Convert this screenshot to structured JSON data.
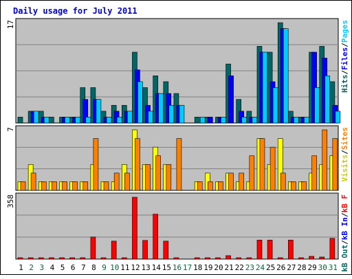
{
  "colors": {
    "hits": "#006666",
    "files": "#0000ff",
    "pages": "#00ccff",
    "visits": "#ffff00",
    "sites": "#ff8000",
    "kb_in": "#0000ff",
    "kb_out": "#006666",
    "kb_f": "#ff0000",
    "panel_bg": "#c0c0c0",
    "weekend_label": "#006633",
    "title": "#0000cc"
  },
  "chart_data": [
    {
      "type": "bar",
      "title": "Daily usage for July 2011",
      "ymax_label": "17",
      "categories": [
        "1",
        "2",
        "3",
        "4",
        "5",
        "6",
        "7",
        "8",
        "9",
        "10",
        "11",
        "12",
        "13",
        "14",
        "15",
        "16",
        "17",
        "18",
        "19",
        "20",
        "21",
        "22",
        "23",
        "24",
        "25",
        "26",
        "27",
        "28",
        "29",
        "30",
        "31"
      ],
      "weekend_days": [
        "2",
        "3",
        "9",
        "10",
        "16",
        "17",
        "23",
        "24",
        "30",
        "31"
      ],
      "series": [
        {
          "name": "Hits",
          "color_key": "hits",
          "values": [
            1,
            2,
            2,
            1,
            1,
            1,
            6,
            6,
            2,
            3,
            3,
            12,
            6,
            8,
            7,
            5,
            0,
            1,
            1,
            1,
            10,
            4,
            2,
            13,
            12,
            17,
            2,
            1,
            12,
            13,
            7
          ]
        },
        {
          "name": "Files",
          "color_key": "files",
          "values": [
            0,
            2,
            1,
            0,
            1,
            1,
            4,
            4,
            1,
            2,
            2,
            9,
            3,
            5,
            5,
            3,
            0,
            0,
            1,
            1,
            8,
            2,
            1,
            12,
            7,
            16,
            1,
            1,
            12,
            11,
            3
          ]
        },
        {
          "name": "Pages",
          "color_key": "pages",
          "values": [
            0,
            2,
            1,
            0,
            1,
            1,
            1,
            4,
            1,
            1,
            2,
            7,
            2,
            5,
            3,
            3,
            0,
            1,
            0,
            1,
            0,
            1,
            1,
            12,
            6,
            16,
            1,
            1,
            6,
            8,
            2
          ]
        }
      ],
      "legend": [
        "Pages",
        "/",
        "Files",
        "/",
        "Hits"
      ]
    },
    {
      "type": "bar",
      "ymax_label": "7",
      "categories": [
        "1",
        "2",
        "3",
        "4",
        "5",
        "6",
        "7",
        "8",
        "9",
        "10",
        "11",
        "12",
        "13",
        "14",
        "15",
        "16",
        "17",
        "18",
        "19",
        "20",
        "21",
        "22",
        "23",
        "24",
        "25",
        "26",
        "27",
        "28",
        "29",
        "30",
        "31"
      ],
      "series": [
        {
          "name": "Visits",
          "color_key": "visits",
          "values": [
            1,
            3,
            1,
            1,
            1,
            1,
            1,
            3,
            1,
            1,
            3,
            7,
            3,
            5,
            3,
            0,
            0,
            1,
            2,
            1,
            2,
            1,
            1,
            6,
            3,
            6,
            1,
            1,
            2,
            3,
            4
          ]
        },
        {
          "name": "Sites",
          "color_key": "sites",
          "values": [
            1,
            2,
            1,
            1,
            1,
            1,
            1,
            6,
            1,
            2,
            2,
            6,
            3,
            4,
            3,
            6,
            0,
            1,
            1,
            1,
            2,
            2,
            4,
            6,
            5,
            2,
            1,
            1,
            4,
            7,
            6
          ]
        }
      ],
      "legend": [
        "Sites",
        "/",
        "Visits"
      ]
    },
    {
      "type": "bar",
      "ymax_label": "358",
      "categories": [
        "1",
        "2",
        "3",
        "4",
        "5",
        "6",
        "7",
        "8",
        "9",
        "10",
        "11",
        "12",
        "13",
        "14",
        "15",
        "16",
        "17",
        "18",
        "19",
        "20",
        "21",
        "22",
        "23",
        "24",
        "25",
        "26",
        "27",
        "28",
        "29",
        "30",
        "31"
      ],
      "series": [
        {
          "name": "kB In",
          "color_key": "kb_in",
          "values": [
            0,
            0,
            0,
            0,
            0,
            0,
            0,
            0,
            0,
            0,
            0,
            0,
            0,
            0,
            0,
            0,
            0,
            0,
            0,
            0,
            0,
            0,
            0,
            0,
            0,
            0,
            0,
            0,
            0,
            0,
            0
          ]
        },
        {
          "name": "kB Out",
          "color_key": "kb_out",
          "values": [
            0,
            0,
            0,
            0,
            0,
            0,
            0,
            0,
            0,
            0,
            0,
            0,
            0,
            0,
            0,
            0,
            0,
            0,
            0,
            0,
            0,
            0,
            0,
            0,
            0,
            0,
            0,
            0,
            0,
            0,
            0
          ]
        },
        {
          "name": "kB F",
          "color_key": "kb_f",
          "values": [
            4,
            4,
            4,
            4,
            8,
            4,
            8,
            128,
            4,
            104,
            8,
            358,
            108,
            260,
            104,
            8,
            0,
            4,
            4,
            4,
            20,
            4,
            4,
            110,
            110,
            8,
            110,
            4,
            16,
            12,
            120
          ]
        }
      ],
      "legend": [
        "kB F",
        "/",
        "kB In",
        "/",
        "kB Out"
      ]
    }
  ]
}
